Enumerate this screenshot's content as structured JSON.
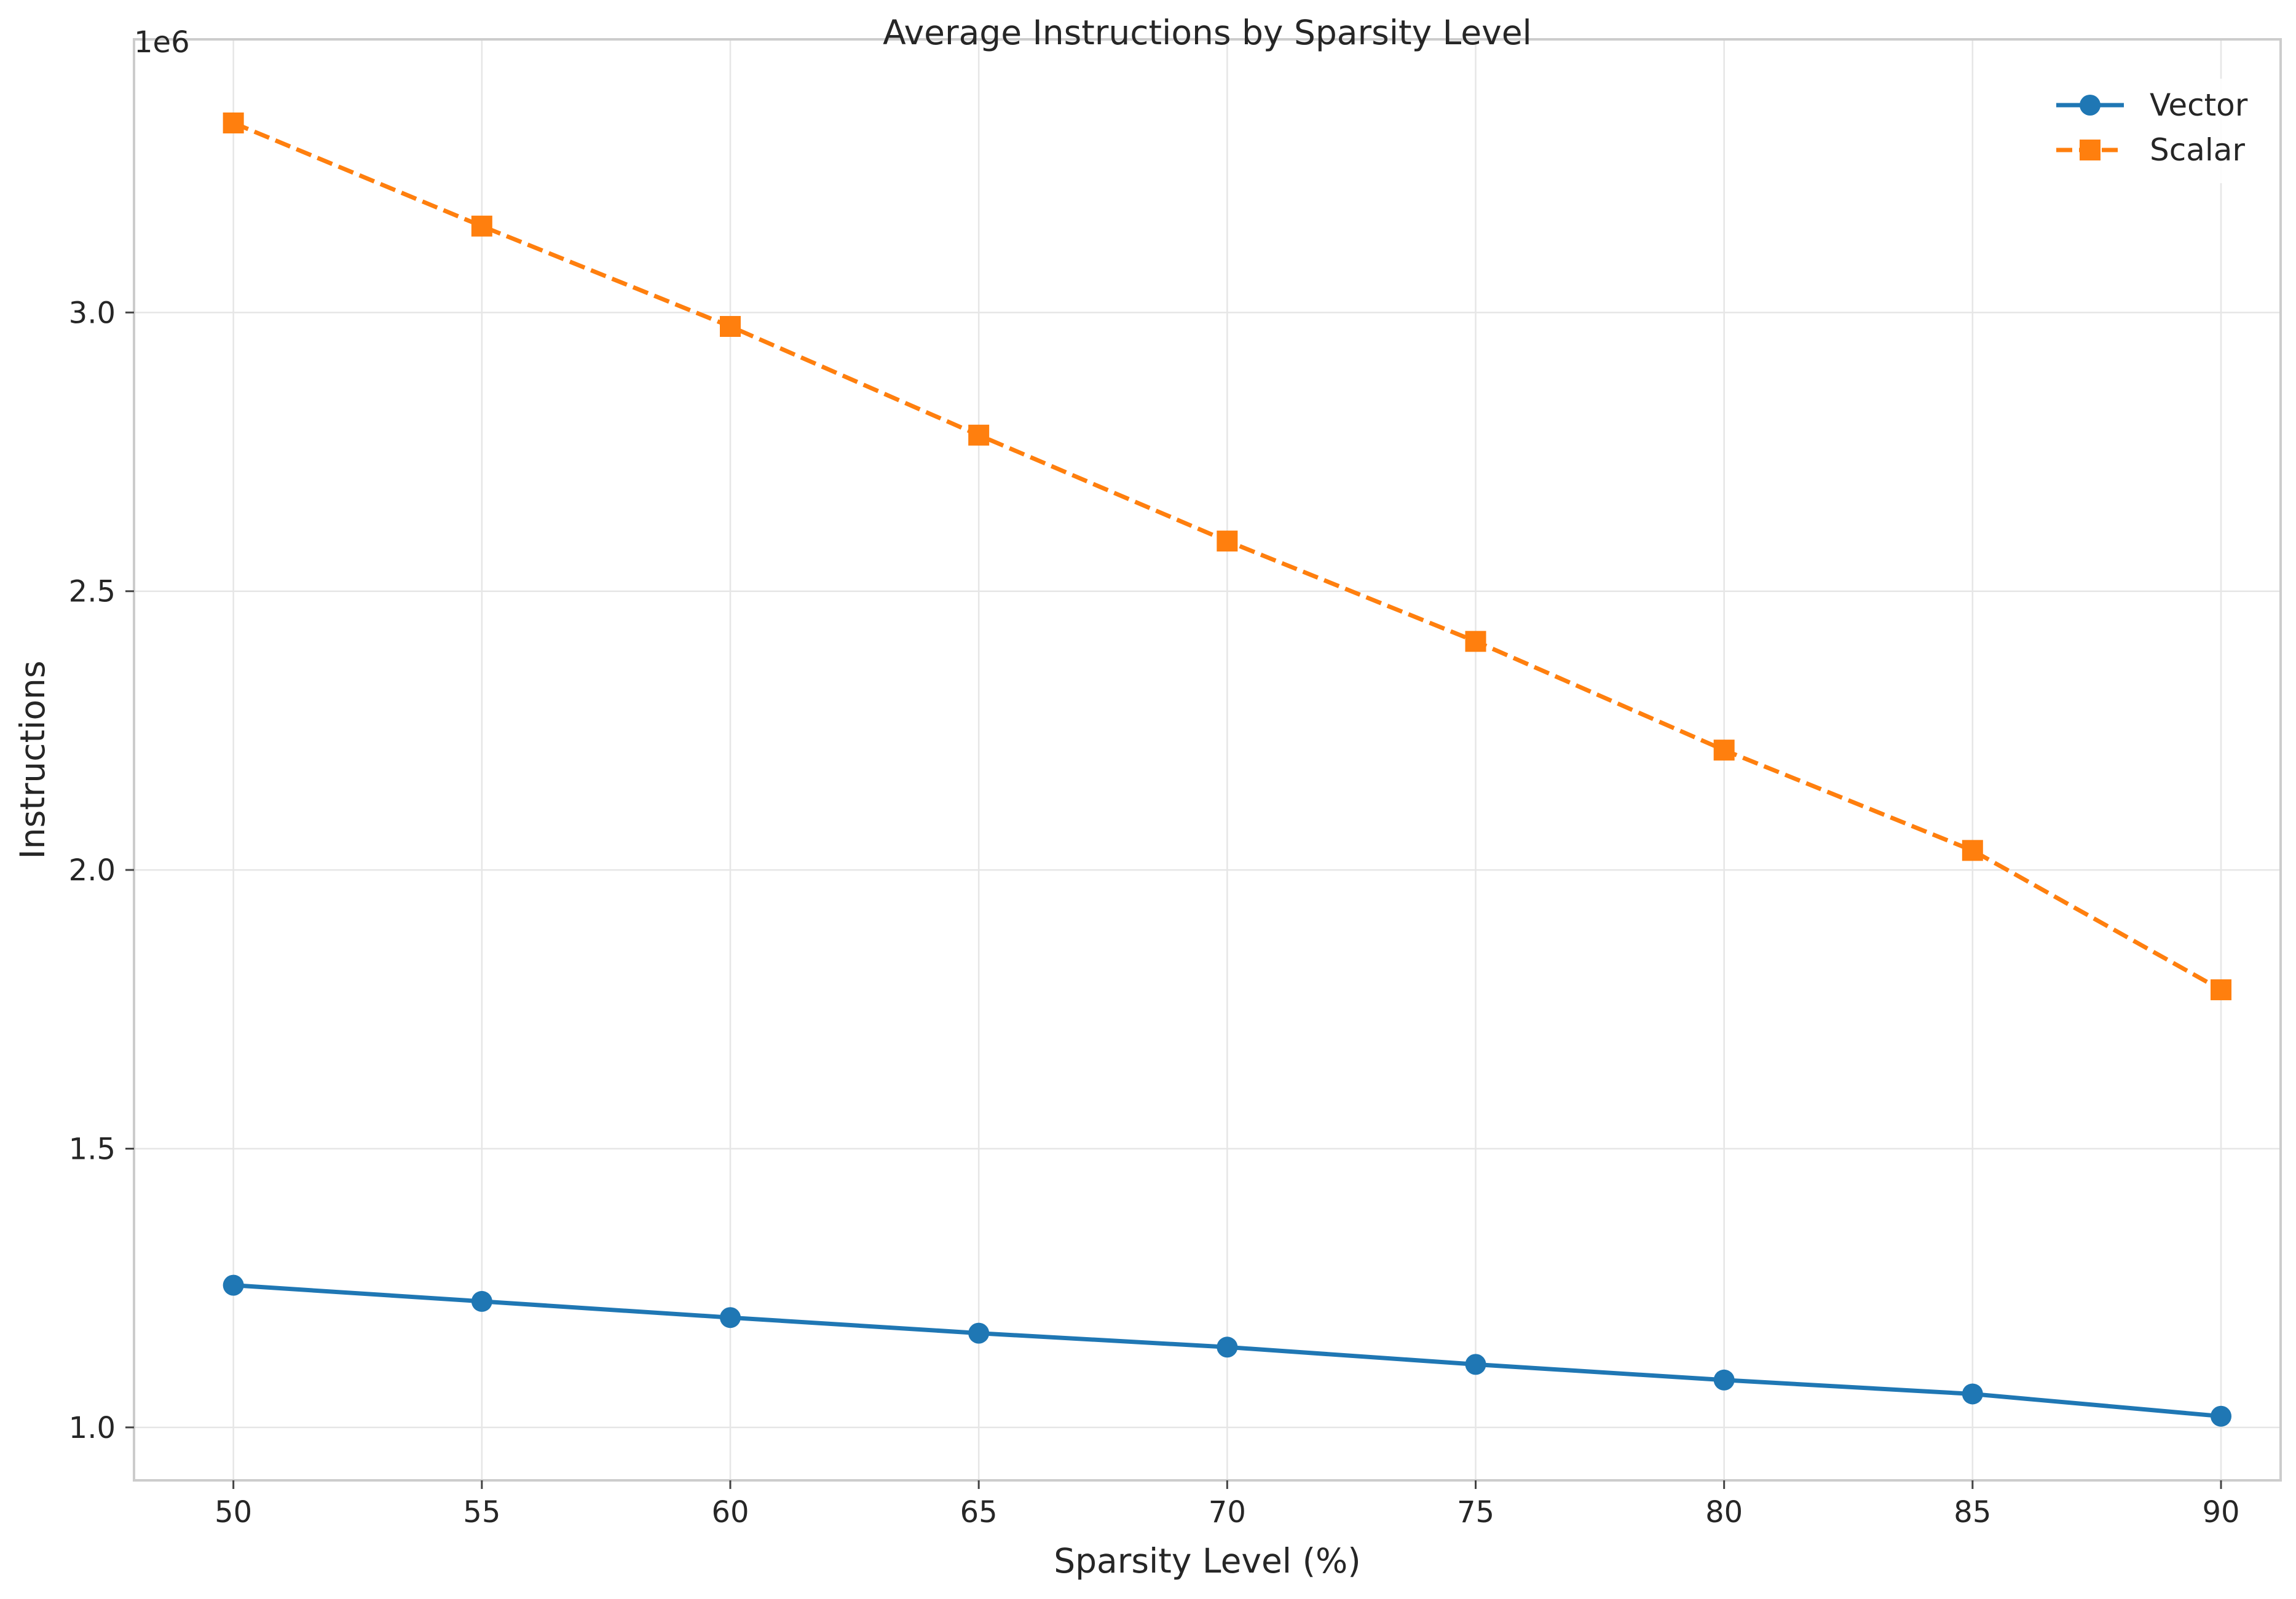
{
  "chart_data": {
    "type": "line",
    "title": "Average Instructions by Sparsity Level",
    "xlabel": "Sparsity Level (%)",
    "ylabel": "Instructions",
    "y_offset_label": "1e6",
    "x": [
      50,
      55,
      60,
      65,
      70,
      75,
      80,
      85,
      90
    ],
    "x_ticks": [
      "50",
      "55",
      "60",
      "65",
      "70",
      "75",
      "80",
      "85",
      "90"
    ],
    "y_ticks": [
      "1.0",
      "1.5",
      "2.0",
      "2.5",
      "3.0"
    ],
    "y_tick_values": [
      1.0,
      1.5,
      2.0,
      2.5,
      3.0
    ],
    "xlim": [
      48,
      91.2
    ],
    "ylim": [
      0.905,
      3.49
    ],
    "grid": true,
    "legend_position": "top-right",
    "series": [
      {
        "name": "Vector",
        "color": "#1f77b4",
        "line_style": "solid",
        "marker": "circle",
        "values": [
          1.255,
          1.226,
          1.197,
          1.169,
          1.144,
          1.113,
          1.085,
          1.06,
          1.02
        ]
      },
      {
        "name": "Scalar",
        "color": "#ff7f0e",
        "line_style": "dashed",
        "marker": "square",
        "values": [
          3.34,
          3.155,
          2.975,
          2.78,
          2.59,
          2.41,
          2.215,
          2.035,
          1.785
        ]
      }
    ]
  }
}
